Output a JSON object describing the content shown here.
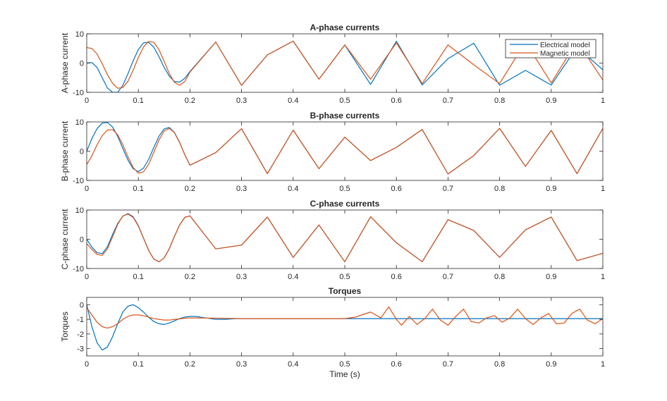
{
  "figure": {
    "background": "#ffffff"
  },
  "colors": {
    "electrical": "#0072BD",
    "magnetic": "#D95319",
    "axis": "#262626"
  },
  "legend": {
    "location": "top-right of first axes",
    "entries": [
      {
        "label": "Electrical model",
        "color": "#0072BD"
      },
      {
        "label": "Magnetic model",
        "color": "#D95319"
      }
    ]
  },
  "xlabel": "Time (s)",
  "chart_data": [
    {
      "type": "line",
      "title": "A-phase currents",
      "ylabel": "A-phase current",
      "xlim": [
        0,
        1
      ],
      "ylim": [
        -10,
        10
      ],
      "xticks": [
        0,
        0.1,
        0.2,
        0.3,
        0.4,
        0.5,
        0.6,
        0.7,
        0.8,
        0.9,
        1
      ],
      "xtick_labels": [
        "0",
        "0.1",
        "0.2",
        "0.3",
        "0.4",
        "0.5",
        "0.6",
        "0.7",
        "0.8",
        "0.9",
        "1"
      ],
      "yticks": [
        -10,
        0,
        10
      ],
      "ytick_labels": [
        "-10",
        "0",
        "10"
      ],
      "series": [
        {
          "name": "Electrical model",
          "x": [
            0,
            0.01,
            0.02,
            0.03,
            0.04,
            0.05,
            0.06,
            0.07,
            0.08,
            0.09,
            0.1,
            0.11,
            0.12,
            0.13,
            0.14,
            0.15,
            0.16,
            0.17,
            0.18,
            0.19,
            0.2,
            0.25,
            0.3,
            0.35,
            0.4,
            0.45,
            0.5,
            0.55,
            0.6,
            0.65,
            0.7,
            0.75,
            0.8,
            0.85,
            0.9,
            0.95,
            1
          ],
          "y": [
            0,
            0.2,
            -1.5,
            -5,
            -8.5,
            -10,
            -10,
            -7.6,
            -3.6,
            0.8,
            4.6,
            6.9,
            7.1,
            5.4,
            2.2,
            -1.5,
            -4.5,
            -6.3,
            -6.5,
            -5.2,
            -2.9,
            7.2,
            -7.6,
            2.8,
            7.5,
            -5.5,
            6.2,
            -7.3,
            7.5,
            -7.5,
            1.5,
            6.8,
            -7.6,
            -2.5,
            -7.5,
            5.5,
            -2.3
          ]
        },
        {
          "name": "Magnetic model",
          "x": [
            0,
            0.01,
            0.02,
            0.03,
            0.04,
            0.05,
            0.06,
            0.07,
            0.08,
            0.09,
            0.1,
            0.11,
            0.12,
            0.13,
            0.14,
            0.15,
            0.16,
            0.17,
            0.18,
            0.19,
            0.2,
            0.25,
            0.3,
            0.35,
            0.4,
            0.45,
            0.5,
            0.55,
            0.6,
            0.65,
            0.7,
            0.75,
            0.8,
            0.85,
            0.9,
            0.95,
            1
          ],
          "y": [
            5.3,
            5,
            3.1,
            -0.2,
            -3.9,
            -6.9,
            -8.6,
            -8.4,
            -6.2,
            -2.4,
            1.9,
            5.5,
            7.4,
            7.1,
            4.6,
            0.6,
            -3.6,
            -6.6,
            -7.6,
            -6.3,
            -3.1,
            7.2,
            -7.6,
            2.8,
            7.5,
            -5.5,
            6.2,
            -5.5,
            6.9,
            -7,
            6.2,
            -0.6,
            -7,
            7.2,
            -6.8,
            7.5,
            -5.8
          ]
        }
      ]
    },
    {
      "type": "line",
      "title": "B-phase currents",
      "ylabel": "B-phase current",
      "xlim": [
        0,
        1
      ],
      "ylim": [
        -10,
        10
      ],
      "xticks": [
        0,
        0.1,
        0.2,
        0.3,
        0.4,
        0.5,
        0.6,
        0.7,
        0.8,
        0.9,
        1
      ],
      "xtick_labels": [
        "0",
        "0.1",
        "0.2",
        "0.3",
        "0.4",
        "0.5",
        "0.6",
        "0.7",
        "0.8",
        "0.9",
        "1"
      ],
      "yticks": [
        -10,
        0,
        10
      ],
      "ytick_labels": [
        "-10",
        "0",
        "10"
      ],
      "series": [
        {
          "name": "Electrical model",
          "x": [
            0,
            0.01,
            0.02,
            0.03,
            0.04,
            0.05,
            0.06,
            0.07,
            0.08,
            0.09,
            0.1,
            0.11,
            0.12,
            0.13,
            0.14,
            0.15,
            0.16,
            0.17,
            0.18,
            0.19,
            0.2,
            0.25,
            0.3,
            0.35,
            0.4,
            0.45,
            0.5,
            0.55,
            0.6,
            0.65,
            0.7,
            0.75,
            0.8,
            0.85,
            0.9,
            0.95,
            1
          ],
          "y": [
            0,
            4.3,
            7.7,
            9.6,
            9.8,
            8.3,
            5.1,
            0.9,
            -3.1,
            -6,
            -7,
            -5.8,
            -2.8,
            1.3,
            5.1,
            7.6,
            8.1,
            6.4,
            3,
            -1.2,
            -4.8,
            -0.5,
            7.7,
            -7.7,
            7.2,
            -6,
            4.8,
            -3.2,
            1.3,
            7.4,
            -7.8,
            -1.5,
            7.8,
            -5.2,
            7.1,
            -7.7,
            7.8
          ]
        },
        {
          "name": "Magnetic model",
          "x": [
            0,
            0.01,
            0.02,
            0.03,
            0.04,
            0.05,
            0.06,
            0.07,
            0.08,
            0.09,
            0.1,
            0.11,
            0.12,
            0.13,
            0.14,
            0.15,
            0.16,
            0.17,
            0.18,
            0.19,
            0.2,
            0.25,
            0.3,
            0.35,
            0.4,
            0.45,
            0.5,
            0.55,
            0.6,
            0.65,
            0.7,
            0.75,
            0.8,
            0.85,
            0.9,
            0.95,
            1
          ],
          "y": [
            -4.6,
            -1.6,
            2.2,
            5.3,
            7.2,
            7.4,
            5.6,
            2.2,
            -2,
            -5.6,
            -7.5,
            -7.1,
            -4.5,
            -0.4,
            3.8,
            6.9,
            7.8,
            6.3,
            2.9,
            -1.2,
            -4.8,
            -0.5,
            7.7,
            -7.7,
            7.2,
            -6,
            4.8,
            -3.2,
            1.3,
            7.4,
            -7.8,
            -1.5,
            7.8,
            -5.2,
            7.1,
            -7.7,
            7.8
          ]
        }
      ]
    },
    {
      "type": "line",
      "title": "C-phase currents",
      "ylabel": "C-phase current",
      "xlim": [
        0,
        1
      ],
      "ylim": [
        -10,
        10
      ],
      "xticks": [
        0,
        0.1,
        0.2,
        0.3,
        0.4,
        0.5,
        0.6,
        0.7,
        0.8,
        0.9,
        1
      ],
      "xtick_labels": [
        "0",
        "0.1",
        "0.2",
        "0.3",
        "0.4",
        "0.5",
        "0.6",
        "0.7",
        "0.8",
        "0.9",
        "1"
      ],
      "yticks": [
        -10,
        0,
        10
      ],
      "ytick_labels": [
        "-10",
        "0",
        "10"
      ],
      "series": [
        {
          "name": "Electrical model",
          "x": [
            0,
            0.01,
            0.02,
            0.03,
            0.04,
            0.05,
            0.06,
            0.07,
            0.08,
            0.09,
            0.1,
            0.11,
            0.12,
            0.13,
            0.14,
            0.15,
            0.16,
            0.17,
            0.18,
            0.19,
            0.2,
            0.25,
            0.3,
            0.35,
            0.4,
            0.45,
            0.5,
            0.55,
            0.6,
            0.65,
            0.7,
            0.75,
            0.8,
            0.85,
            0.9,
            0.95,
            1
          ],
          "y": [
            0,
            -2.7,
            -4.6,
            -4.9,
            -2.6,
            1.6,
            5.4,
            7.9,
            8.8,
            7.7,
            4.7,
            0.4,
            -3.8,
            -6.8,
            -7.7,
            -6.4,
            -3.2,
            1,
            4.9,
            7.5,
            8,
            -3.3,
            -2,
            7.6,
            -6.2,
            4.9,
            -7.7,
            7.7,
            -1.2,
            -7.7,
            6.7,
            3,
            -6.2,
            3.2,
            7.6,
            -7.3,
            -4.8
          ]
        },
        {
          "name": "Magnetic model",
          "x": [
            0,
            0.01,
            0.02,
            0.03,
            0.04,
            0.05,
            0.06,
            0.07,
            0.08,
            0.09,
            0.1,
            0.11,
            0.12,
            0.13,
            0.14,
            0.15,
            0.16,
            0.17,
            0.18,
            0.19,
            0.2,
            0.25,
            0.3,
            0.35,
            0.4,
            0.45,
            0.5,
            0.55,
            0.6,
            0.65,
            0.7,
            0.75,
            0.8,
            0.85,
            0.9,
            0.95,
            1
          ],
          "y": [
            -1.5,
            -3.5,
            -5.2,
            -5.5,
            -3.3,
            0.8,
            5.1,
            8,
            8.6,
            7.5,
            4.5,
            0.4,
            -3.8,
            -6.8,
            -7.7,
            -6.4,
            -3.2,
            1,
            4.9,
            7.5,
            8,
            -3.3,
            -2,
            7.6,
            -6.2,
            4.9,
            -7.7,
            7.7,
            -1.2,
            -7.7,
            6.7,
            3,
            -6.2,
            3.2,
            7.6,
            -7.3,
            -4.8
          ]
        }
      ]
    },
    {
      "type": "line",
      "title": "Torques",
      "ylabel": "Torques",
      "xlabel": "Time (s)",
      "xlim": [
        0,
        1
      ],
      "ylim": [
        -3.5,
        0.5
      ],
      "xticks": [
        0,
        0.1,
        0.2,
        0.3,
        0.4,
        0.5,
        0.6,
        0.7,
        0.8,
        0.9,
        1
      ],
      "xtick_labels": [
        "0",
        "0.1",
        "0.2",
        "0.3",
        "0.4",
        "0.5",
        "0.6",
        "0.7",
        "0.8",
        "0.9",
        "1"
      ],
      "yticks": [
        -3,
        -2,
        -1,
        0
      ],
      "ytick_labels": [
        "-3",
        "-2",
        "-1",
        "0"
      ],
      "series": [
        {
          "name": "Electrical model",
          "x": [
            0,
            0.01,
            0.02,
            0.03,
            0.04,
            0.05,
            0.06,
            0.07,
            0.08,
            0.09,
            0.1,
            0.11,
            0.12,
            0.13,
            0.14,
            0.15,
            0.16,
            0.17,
            0.18,
            0.19,
            0.2,
            0.21,
            0.22,
            0.23,
            0.24,
            0.25,
            0.26,
            0.27,
            0.28,
            0.29,
            0.3,
            0.35,
            0.4,
            0.45,
            0.5,
            0.55,
            0.6,
            0.65,
            0.7,
            0.75,
            0.8,
            0.85,
            0.9,
            0.95,
            1
          ],
          "y": [
            0,
            -1.5,
            -2.6,
            -3.1,
            -2.9,
            -2.2,
            -1.3,
            -0.5,
            -0.1,
            0,
            -0.2,
            -0.5,
            -0.85,
            -1.15,
            -1.3,
            -1.35,
            -1.25,
            -1.1,
            -0.95,
            -0.85,
            -0.8,
            -0.8,
            -0.85,
            -0.9,
            -0.95,
            -1,
            -1,
            -1,
            -0.97,
            -0.95,
            -0.95,
            -0.95,
            -0.95,
            -0.95,
            -0.95,
            -0.95,
            -0.95,
            -0.95,
            -0.95,
            -0.95,
            -0.95,
            -0.95,
            -0.95,
            -0.95,
            -0.95
          ]
        },
        {
          "name": "Magnetic model",
          "x": [
            0,
            0.01,
            0.02,
            0.03,
            0.04,
            0.05,
            0.06,
            0.07,
            0.08,
            0.09,
            0.1,
            0.11,
            0.12,
            0.13,
            0.14,
            0.15,
            0.16,
            0.17,
            0.18,
            0.19,
            0.2,
            0.25,
            0.3,
            0.35,
            0.4,
            0.45,
            0.5,
            0.52,
            0.55,
            0.57,
            0.585,
            0.6,
            0.61,
            0.625,
            0.64,
            0.655,
            0.67,
            0.685,
            0.7,
            0.715,
            0.73,
            0.745,
            0.76,
            0.775,
            0.79,
            0.805,
            0.82,
            0.835,
            0.85,
            0.865,
            0.88,
            0.895,
            0.91,
            0.925,
            0.94,
            0.955,
            0.97,
            0.985,
            1
          ],
          "y": [
            -0.2,
            -0.7,
            -1.2,
            -1.5,
            -1.6,
            -1.5,
            -1.3,
            -1,
            -0.8,
            -0.7,
            -0.7,
            -0.75,
            -0.85,
            -0.95,
            -1,
            -1.05,
            -1.05,
            -1,
            -0.97,
            -0.93,
            -0.9,
            -0.92,
            -0.95,
            -0.95,
            -0.95,
            -0.95,
            -0.95,
            -0.85,
            -0.5,
            -0.9,
            -0.15,
            -1,
            -1.4,
            -0.8,
            -1.35,
            -0.95,
            -0.3,
            -1.05,
            -1.4,
            -0.8,
            -0.3,
            -1.15,
            -1.25,
            -0.9,
            -0.75,
            -1.2,
            -0.9,
            -0.3,
            -0.95,
            -1.35,
            -0.9,
            -0.6,
            -1.3,
            -1.25,
            -0.6,
            -0.3,
            -1.05,
            -1.3,
            -0.95
          ]
        }
      ]
    }
  ]
}
